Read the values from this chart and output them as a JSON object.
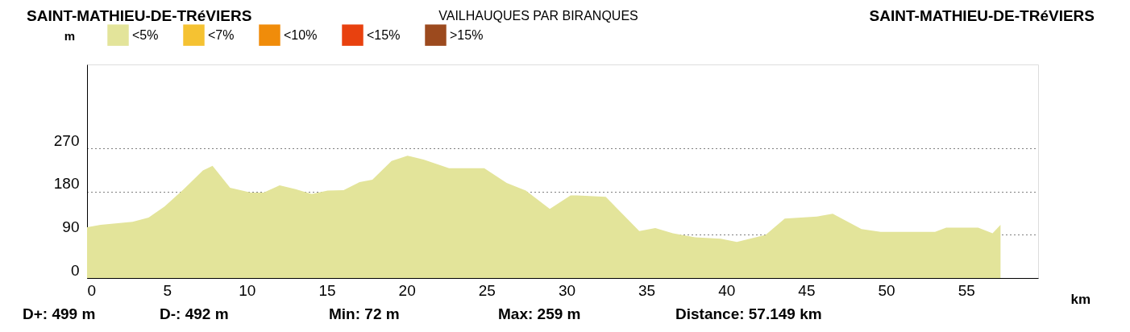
{
  "chart_data": {
    "type": "area",
    "title": "VAILHAUQUES PAR BIRANQUES",
    "xlabel": "km",
    "ylabel": "m",
    "x": [
      0,
      0.85,
      2.85,
      3.85,
      4.85,
      6.05,
      7.25,
      7.85,
      8.95,
      10.25,
      11.05,
      12.05,
      13.05,
      14.05,
      15.05,
      16.05,
      17.05,
      17.85,
      19.05,
      20.05,
      21.05,
      22.65,
      24.85,
      26.25,
      27.45,
      28.95,
      30.25,
      30.65,
      32.45,
      34.55,
      35.55,
      36.65,
      38.05,
      39.65,
      40.65,
      42.45,
      43.65,
      45.65,
      46.65,
      48.45,
      49.65,
      53.05,
      53.75,
      55.75,
      56.65,
      57.149
    ],
    "series": [
      {
        "name": "<5%",
        "color": "#e3e49a",
        "values": [
          106,
          111,
          117,
          126,
          149,
          185,
          224,
          234,
          188,
          178,
          178,
          193,
          185,
          175,
          182,
          183,
          200,
          205,
          244,
          255,
          247,
          229,
          229,
          198,
          182,
          144,
          172,
          172,
          169,
          98,
          104,
          93,
          85,
          82,
          75,
          90,
          124,
          128,
          134,
          102,
          96,
          96,
          105,
          105,
          93,
          111
        ]
      },
      {
        "name": "<7%",
        "color": "#f5c232",
        "values": [
          null,
          null,
          null,
          null,
          null,
          null,
          null,
          null,
          null,
          null,
          null,
          null,
          null,
          null,
          null,
          null,
          null,
          null,
          null,
          null,
          null,
          null,
          null,
          null,
          null,
          null,
          null,
          null,
          null,
          null,
          null,
          null,
          null,
          null,
          null,
          null,
          null,
          null,
          null,
          null,
          null,
          null,
          null,
          null,
          null,
          null
        ]
      },
      {
        "name": "<10%",
        "color": "#f08c0a",
        "values": [
          null,
          null,
          null,
          null,
          null,
          null,
          null,
          null,
          null,
          null,
          null,
          null,
          null,
          null,
          null,
          null,
          null,
          null,
          null,
          null,
          null,
          null,
          null,
          null,
          null,
          null,
          null,
          null,
          null,
          null,
          null,
          null,
          null,
          null,
          null,
          null,
          null,
          null,
          null,
          null,
          null,
          null,
          null,
          null,
          null,
          null
        ]
      },
      {
        "name": "<15%",
        "color": "#e8410f",
        "values": [
          null,
          null,
          null,
          null,
          null,
          null,
          null,
          null,
          null,
          null,
          null,
          null,
          null,
          null,
          null,
          null,
          null,
          null,
          null,
          null,
          null,
          null,
          null,
          null,
          null,
          null,
          null,
          null,
          null,
          null,
          null,
          null,
          null,
          null,
          null,
          null,
          null,
          null,
          null,
          null,
          null,
          null,
          null,
          null,
          null,
          null
        ]
      },
      {
        "name": ">15%",
        "color": "#9c4a1e",
        "values": [
          null,
          null,
          null,
          null,
          null,
          null,
          null,
          null,
          null,
          null,
          null,
          null,
          null,
          null,
          null,
          null,
          null,
          null,
          null,
          null,
          null,
          null,
          null,
          null,
          null,
          null,
          null,
          null,
          null,
          null,
          null,
          null,
          null,
          null,
          null,
          null,
          null,
          null,
          null,
          null,
          null,
          null,
          null,
          null,
          null,
          null
        ]
      }
    ],
    "xlim": [
      0,
      59.5
    ],
    "xticks": [
      0,
      5,
      10,
      15,
      20,
      25,
      30,
      35,
      40,
      45,
      50,
      55
    ],
    "ylim": [
      0,
      445
    ],
    "yticks": [
      0,
      90,
      180,
      270
    ],
    "grid": "y",
    "line_style": "dotted",
    "legend": "top left",
    "annotations": [
      "SAINT-MATHIEU-DE-TRéVIERS",
      "SAINT-MATHIEU-DE-TRéVIERS",
      "D+: 499 m",
      "D-: 492 m",
      "Min: 72 m",
      "Max: 259 m",
      "Distance: 57.149 km"
    ]
  }
}
